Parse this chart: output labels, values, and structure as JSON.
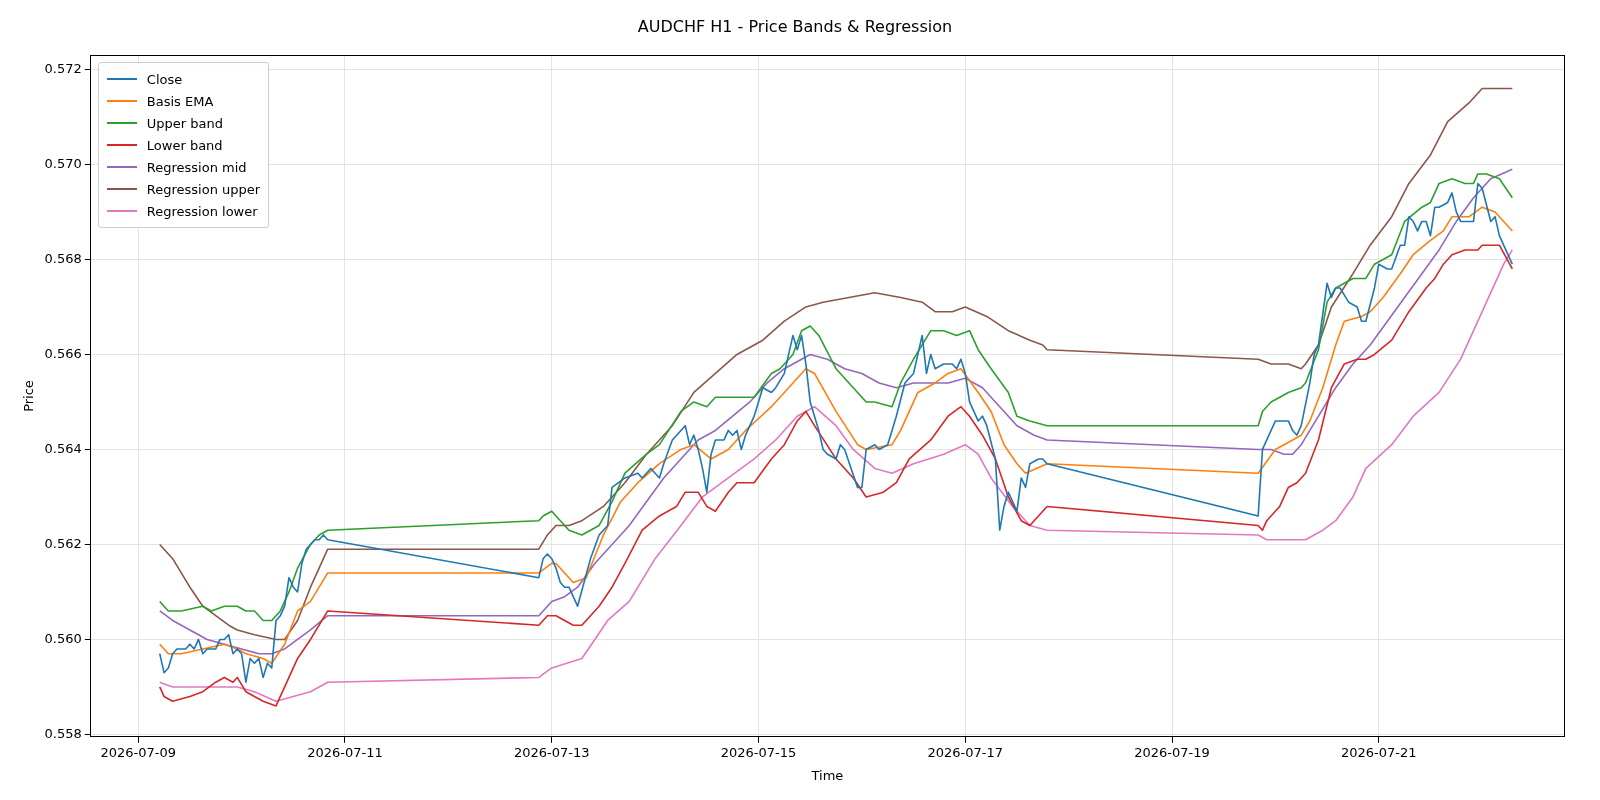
{
  "chart_data": {
    "type": "line",
    "title": "AUDCHF H1 - Price Bands & Regression",
    "xlabel": "Time",
    "ylabel": "Price",
    "xlim": [
      "2026-07-08T13:00",
      "2026-07-22T19:00"
    ],
    "xticks": [
      "2026-07-09",
      "2026-07-11",
      "2026-07-13",
      "2026-07-15",
      "2026-07-17",
      "2026-07-19",
      "2026-07-21"
    ],
    "ylim": [
      0.55795,
      0.5723
    ],
    "yticks": [
      0.558,
      {
        "value": 0.56,
        "label": "0.560"
      },
      0.562,
      0.564,
      0.566,
      0.568,
      {
        "value": 0.57,
        "label": "0.570"
      },
      0.572
    ],
    "grid": true,
    "legend": "top left",
    "line_style": "solid",
    "series": [
      {
        "name": "Close",
        "color": "#1f77b4",
        "x": [
          "2026-07-09T05:00",
          "2026-07-09T06:00",
          "2026-07-09T07:00",
          "2026-07-09T08:00",
          "2026-07-09T09:00",
          "2026-07-09T10:00",
          "2026-07-09T11:00",
          "2026-07-09T12:00",
          "2026-07-09T13:00",
          "2026-07-09T14:00",
          "2026-07-09T15:00",
          "2026-07-09T16:00",
          "2026-07-09T17:00",
          "2026-07-09T18:00",
          "2026-07-09T19:00",
          "2026-07-09T20:00",
          "2026-07-09T21:00",
          "2026-07-09T22:00",
          "2026-07-09T23:00",
          "2026-07-10T00:00",
          "2026-07-10T01:00",
          "2026-07-10T02:00",
          "2026-07-10T03:00",
          "2026-07-10T04:00",
          "2026-07-10T05:00",
          "2026-07-10T06:00",
          "2026-07-10T07:00",
          "2026-07-10T08:00",
          "2026-07-10T09:00",
          "2026-07-10T10:00",
          "2026-07-10T11:00",
          "2026-07-10T12:00",
          "2026-07-10T13:00",
          "2026-07-10T14:00",
          "2026-07-10T15:00",
          "2026-07-10T16:00",
          "2026-07-10T17:00",
          "2026-07-10T18:00",
          "2026-07-10T19:00",
          "2026-07-10T20:00",
          "2026-07-12T21:00",
          "2026-07-12T22:00",
          "2026-07-12T23:00",
          "2026-07-13T00:00",
          "2026-07-13T01:00",
          "2026-07-13T02:00",
          "2026-07-13T03:00",
          "2026-07-13T04:00",
          "2026-07-13T06:00",
          "2026-07-13T09:00",
          "2026-07-13T11:00",
          "2026-07-13T13:00",
          "2026-07-13T14:00",
          "2026-07-13T17:00",
          "2026-07-13T20:00",
          "2026-07-13T21:00",
          "2026-07-13T23:00",
          "2026-07-14T01:00",
          "2026-07-14T02:00",
          "2026-07-14T04:00",
          "2026-07-14T05:00",
          "2026-07-14T07:00",
          "2026-07-14T08:00",
          "2026-07-14T09:00",
          "2026-07-14T10:00",
          "2026-07-14T11:00",
          "2026-07-14T12:00",
          "2026-07-14T13:00",
          "2026-07-14T14:00",
          "2026-07-14T16:00",
          "2026-07-14T17:00",
          "2026-07-14T18:00",
          "2026-07-14T19:00",
          "2026-07-14T20:00",
          "2026-07-14T21:00",
          "2026-07-14T23:00",
          "2026-07-15T01:00",
          "2026-07-15T03:00",
          "2026-07-15T04:00",
          "2026-07-15T06:00",
          "2026-07-15T08:00",
          "2026-07-15T09:00",
          "2026-07-15T10:00",
          "2026-07-15T11:00",
          "2026-07-15T12:00",
          "2026-07-15T14:00",
          "2026-07-15T15:00",
          "2026-07-15T16:00",
          "2026-07-15T18:00",
          "2026-07-15T19:00",
          "2026-07-15T20:00",
          "2026-07-15T23:00",
          "2026-07-16T00:00",
          "2026-07-16T01:00",
          "2026-07-16T03:00",
          "2026-07-16T04:00",
          "2026-07-16T06:00",
          "2026-07-16T08:00",
          "2026-07-16T10:00",
          "2026-07-16T12:00",
          "2026-07-16T14:00",
          "2026-07-16T15:00",
          "2026-07-16T16:00",
          "2026-07-16T17:00",
          "2026-07-16T19:00",
          "2026-07-16T21:00",
          "2026-07-16T22:00",
          "2026-07-16T23:00",
          "2026-07-17T00:00",
          "2026-07-17T01:00",
          "2026-07-17T03:00",
          "2026-07-17T04:00",
          "2026-07-17T05:00",
          "2026-07-17T07:00",
          "2026-07-17T08:00",
          "2026-07-17T09:00",
          "2026-07-17T10:00",
          "2026-07-17T12:00",
          "2026-07-17T13:00",
          "2026-07-17T14:00",
          "2026-07-17T15:00",
          "2026-07-17T17:00",
          "2026-07-17T18:00",
          "2026-07-17T19:00",
          "2026-07-19T20:00",
          "2026-07-19T21:00",
          "2026-07-19T22:00",
          "2026-07-20T00:00",
          "2026-07-20T03:00",
          "2026-07-20T04:00",
          "2026-07-20T05:00",
          "2026-07-20T06:00",
          "2026-07-20T08:00",
          "2026-07-20T09:00",
          "2026-07-20T10:00",
          "2026-07-20T12:00",
          "2026-07-20T13:00",
          "2026-07-20T14:00",
          "2026-07-20T15:00",
          "2026-07-20T17:00",
          "2026-07-20T19:00",
          "2026-07-20T20:00",
          "2026-07-20T21:00",
          "2026-07-20T23:00",
          "2026-07-21T00:00",
          "2026-07-21T02:00",
          "2026-07-21T03:00",
          "2026-07-21T05:00",
          "2026-07-21T06:00",
          "2026-07-21T07:00",
          "2026-07-21T08:00",
          "2026-07-21T09:00",
          "2026-07-21T10:00",
          "2026-07-21T11:00",
          "2026-07-21T12:00",
          "2026-07-21T13:00",
          "2026-07-21T14:00",
          "2026-07-21T16:00",
          "2026-07-21T17:00",
          "2026-07-21T18:00",
          "2026-07-21T19:00",
          "2026-07-21T21:00",
          "2026-07-21T22:00",
          "2026-07-21T23:00",
          "2026-07-22T00:00",
          "2026-07-22T02:00",
          "2026-07-22T03:00",
          "2026-07-22T04:00",
          "2026-07-22T07:00"
        ],
        "values": [
          0.5597,
          0.5593,
          0.5594,
          0.5597,
          0.5598,
          0.5598,
          0.5598,
          0.5599,
          0.5598,
          0.56,
          0.5597,
          0.5598,
          0.5598,
          0.5598,
          0.56,
          0.56,
          0.5601,
          0.5597,
          0.5598,
          0.5597,
          0.5591,
          0.5596,
          0.5595,
          0.5596,
          0.5592,
          0.5595,
          0.5594,
          0.5604,
          0.5605,
          0.5607,
          0.5613,
          0.5611,
          0.561,
          0.5616,
          0.5619,
          0.562,
          0.5621,
          0.5621,
          0.5622,
          0.5621,
          0.5613,
          0.5617,
          0.5618,
          0.5617,
          0.5615,
          0.5612,
          0.5611,
          0.5611,
          0.5607,
          0.5617,
          0.5622,
          0.5624,
          0.5632,
          0.5634,
          0.5635,
          0.5634,
          0.5636,
          0.5634,
          0.5637,
          0.5642,
          0.5643,
          0.5645,
          0.5641,
          0.5643,
          0.564,
          0.5636,
          0.5631,
          0.5639,
          0.5642,
          0.5642,
          0.5644,
          0.5643,
          0.5644,
          0.564,
          0.5643,
          0.5647,
          0.5653,
          0.5652,
          0.5653,
          0.5656,
          0.5664,
          0.5661,
          0.5664,
          0.5658,
          0.565,
          0.5644,
          0.564,
          0.5639,
          0.5638,
          0.5641,
          0.564,
          0.5632,
          0.5632,
          0.564,
          0.5641,
          0.564,
          0.5641,
          0.5647,
          0.5654,
          0.5656,
          0.5664,
          0.5656,
          0.566,
          0.5657,
          0.5658,
          0.5658,
          0.5657,
          0.5659,
          0.5656,
          0.565,
          0.5646,
          0.5647,
          0.5645,
          0.5638,
          0.5623,
          0.5628,
          0.5631,
          0.5627,
          0.5634,
          0.5632,
          0.5637,
          0.5638,
          0.5638,
          0.5637,
          0.5626,
          0.564,
          0.5642,
          0.5646,
          0.5646,
          0.5644,
          0.5643,
          0.5645,
          0.5654,
          0.566,
          0.5662,
          0.5675,
          0.5672,
          0.5674,
          0.5674,
          0.5671,
          0.567,
          0.5667,
          0.5667,
          0.5674,
          0.5679,
          0.5678,
          0.5678,
          0.5683,
          0.5683,
          0.5689,
          0.5688,
          0.5686,
          0.5688,
          0.5688,
          0.5685,
          0.5691,
          0.5691,
          0.5692,
          0.5694,
          0.569,
          0.5688,
          0.5688,
          0.5688,
          0.5696,
          0.5695,
          0.5688,
          0.5689,
          0.5685,
          0.5679
        ]
      },
      {
        "name": "Basis EMA",
        "color": "#ff7f0e",
        "x": [
          "2026-07-09T05:00",
          "2026-07-09T07:00",
          "2026-07-09T10:00",
          "2026-07-09T15:00",
          "2026-07-09T20:00",
          "2026-07-09T23:00",
          "2026-07-10T01:00",
          "2026-07-10T05:00",
          "2026-07-10T07:00",
          "2026-07-10T10:00",
          "2026-07-10T13:00",
          "2026-07-10T16:00",
          "2026-07-10T20:00",
          "2026-07-12T21:00",
          "2026-07-13T00:00",
          "2026-07-13T01:00",
          "2026-07-13T05:00",
          "2026-07-13T08:00",
          "2026-07-13T12:00",
          "2026-07-13T16:00",
          "2026-07-13T20:00",
          "2026-07-14T01:00",
          "2026-07-14T06:00",
          "2026-07-14T09:00",
          "2026-07-14T13:00",
          "2026-07-14T17:00",
          "2026-07-14T21:00",
          "2026-07-15T03:00",
          "2026-07-15T08:00",
          "2026-07-15T11:00",
          "2026-07-15T13:00",
          "2026-07-15T18:00",
          "2026-07-15T23:00",
          "2026-07-16T01:00",
          "2026-07-16T07:00",
          "2026-07-16T09:00",
          "2026-07-16T13:00",
          "2026-07-16T17:00",
          "2026-07-16T20:00",
          "2026-07-16T23:00",
          "2026-07-17T03:00",
          "2026-07-17T06:00",
          "2026-07-17T09:00",
          "2026-07-17T12:00",
          "2026-07-17T14:00",
          "2026-07-17T19:00",
          "2026-07-19T20:00",
          "2026-07-20T00:00",
          "2026-07-20T04:00",
          "2026-07-20T06:00",
          "2026-07-20T08:00",
          "2026-07-20T11:00",
          "2026-07-20T14:00",
          "2026-07-20T16:00",
          "2026-07-20T20:00",
          "2026-07-20T22:00",
          "2026-07-21T01:00",
          "2026-07-21T05:00",
          "2026-07-21T08:00",
          "2026-07-21T12:00",
          "2026-07-21T15:00",
          "2026-07-21T17:00",
          "2026-07-21T21:00",
          "2026-07-22T00:00",
          "2026-07-22T03:00",
          "2026-07-22T07:00"
        ],
        "values": [
          0.5599,
          0.5597,
          0.5597,
          0.5598,
          0.5599,
          0.5598,
          0.5597,
          0.5596,
          0.5595,
          0.5599,
          0.5606,
          0.5608,
          0.5614,
          0.5614,
          0.5616,
          0.5616,
          0.5612,
          0.5613,
          0.5622,
          0.5629,
          0.5633,
          0.5637,
          0.564,
          0.5641,
          0.5638,
          0.564,
          0.5644,
          0.5649,
          0.5654,
          0.5657,
          0.5656,
          0.5648,
          0.5641,
          0.564,
          0.5641,
          0.5644,
          0.5652,
          0.5654,
          0.5656,
          0.5657,
          0.5652,
          0.5648,
          0.5641,
          0.5637,
          0.5635,
          0.5637,
          0.5635,
          0.564,
          0.5642,
          0.5643,
          0.5646,
          0.5653,
          0.5662,
          0.5667,
          0.5668,
          0.5669,
          0.5672,
          0.5677,
          0.5681,
          0.5684,
          0.5686,
          0.5689,
          0.5689,
          0.5691,
          0.569,
          0.5686
        ]
      },
      {
        "name": "Upper band",
        "color": "#2ca02c",
        "x": [
          "2026-07-09T05:00",
          "2026-07-09T07:00",
          "2026-07-09T10:00",
          "2026-07-09T15:00",
          "2026-07-09T17:00",
          "2026-07-09T20:00",
          "2026-07-09T23:00",
          "2026-07-10T01:00",
          "2026-07-10T03:00",
          "2026-07-10T05:00",
          "2026-07-10T07:00",
          "2026-07-10T09:00",
          "2026-07-10T11:00",
          "2026-07-10T13:00",
          "2026-07-10T16:00",
          "2026-07-10T18:00",
          "2026-07-10T20:00",
          "2026-07-12T21:00",
          "2026-07-12T22:00",
          "2026-07-13T00:00",
          "2026-07-13T01:00",
          "2026-07-13T04:00",
          "2026-07-13T07:00",
          "2026-07-13T11:00",
          "2026-07-13T14:00",
          "2026-07-13T17:00",
          "2026-07-13T22:00",
          "2026-07-14T01:00",
          "2026-07-14T06:00",
          "2026-07-14T09:00",
          "2026-07-14T12:00",
          "2026-07-14T14:00",
          "2026-07-14T17:00",
          "2026-07-14T21:00",
          "2026-07-14T23:00",
          "2026-07-15T03:00",
          "2026-07-15T05:00",
          "2026-07-15T08:00",
          "2026-07-15T10:00",
          "2026-07-15T12:00",
          "2026-07-15T14:00",
          "2026-07-15T18:00",
          "2026-07-16T00:00",
          "2026-07-16T01:00",
          "2026-07-16T03:00",
          "2026-07-16T07:00",
          "2026-07-16T09:00",
          "2026-07-16T12:00",
          "2026-07-16T16:00",
          "2026-07-16T19:00",
          "2026-07-16T22:00",
          "2026-07-17T01:00",
          "2026-07-17T03:00",
          "2026-07-17T06:00",
          "2026-07-17T10:00",
          "2026-07-17T12:00",
          "2026-07-17T15:00",
          "2026-07-17T19:00",
          "2026-07-19T20:00",
          "2026-07-19T21:00",
          "2026-07-19T23:00",
          "2026-07-20T03:00",
          "2026-07-20T06:00",
          "2026-07-20T07:00",
          "2026-07-20T10:00",
          "2026-07-20T12:00",
          "2026-07-20T14:00",
          "2026-07-20T18:00",
          "2026-07-20T21:00",
          "2026-07-20T23:00",
          "2026-07-21T03:00",
          "2026-07-21T06:00",
          "2026-07-21T10:00",
          "2026-07-21T12:00",
          "2026-07-21T14:00",
          "2026-07-21T17:00",
          "2026-07-21T20:00",
          "2026-07-21T22:00",
          "2026-07-21T23:00",
          "2026-07-22T01:00",
          "2026-07-22T04:00",
          "2026-07-22T07:00"
        ],
        "values": [
          0.5608,
          0.5606,
          0.5606,
          0.5607,
          0.5606,
          0.5607,
          0.5607,
          0.5606,
          0.5606,
          0.5604,
          0.5604,
          0.5606,
          0.561,
          0.5615,
          0.562,
          0.5622,
          0.5623,
          0.5625,
          0.5626,
          0.5627,
          0.5626,
          0.5623,
          0.5622,
          0.5624,
          0.5629,
          0.5635,
          0.5639,
          0.5641,
          0.5648,
          0.565,
          0.5649,
          0.5651,
          0.5651,
          0.5651,
          0.5651,
          0.5656,
          0.5657,
          0.566,
          0.5665,
          0.5666,
          0.5664,
          0.5657,
          0.5651,
          0.565,
          0.565,
          0.5649,
          0.5654,
          0.5659,
          0.5665,
          0.5665,
          0.5664,
          0.5665,
          0.5661,
          0.5657,
          0.5652,
          0.5647,
          0.5646,
          0.5645,
          0.5645,
          0.5648,
          0.565,
          0.5652,
          0.5653,
          0.5654,
          0.5661,
          0.5671,
          0.5674,
          0.5676,
          0.5676,
          0.5679,
          0.5681,
          0.5688,
          0.5691,
          0.5692,
          0.5696,
          0.5697,
          0.5696,
          0.5696,
          0.5698,
          0.5698,
          0.5697,
          0.5693
        ]
      },
      {
        "name": "Lower band",
        "color": "#d62728",
        "x": [
          "2026-07-09T05:00",
          "2026-07-09T06:00",
          "2026-07-09T08:00",
          "2026-07-09T12:00",
          "2026-07-09T15:00",
          "2026-07-09T18:00",
          "2026-07-09T20:00",
          "2026-07-09T22:00",
          "2026-07-09T23:00",
          "2026-07-10T01:00",
          "2026-07-10T03:00",
          "2026-07-10T05:00",
          "2026-07-10T08:00",
          "2026-07-10T09:00",
          "2026-07-10T11:00",
          "2026-07-10T13:00",
          "2026-07-10T16:00",
          "2026-07-10T20:00",
          "2026-07-12T21:00",
          "2026-07-12T23:00",
          "2026-07-13T01:00",
          "2026-07-13T03:00",
          "2026-07-13T05:00",
          "2026-07-13T07:00",
          "2026-07-13T11:00",
          "2026-07-13T14:00",
          "2026-07-13T17:00",
          "2026-07-13T21:00",
          "2026-07-14T01:00",
          "2026-07-14T05:00",
          "2026-07-14T07:00",
          "2026-07-14T10:00",
          "2026-07-14T12:00",
          "2026-07-14T14:00",
          "2026-07-14T17:00",
          "2026-07-14T19:00",
          "2026-07-14T23:00",
          "2026-07-15T03:00",
          "2026-07-15T06:00",
          "2026-07-15T09:00",
          "2026-07-15T11:00",
          "2026-07-15T13:00",
          "2026-07-15T18:00",
          "2026-07-15T22:00",
          "2026-07-16T01:00",
          "2026-07-16T05:00",
          "2026-07-16T08:00",
          "2026-07-16T11:00",
          "2026-07-16T16:00",
          "2026-07-16T20:00",
          "2026-07-16T23:00",
          "2026-07-17T01:00",
          "2026-07-17T04:00",
          "2026-07-17T07:00",
          "2026-07-17T10:00",
          "2026-07-17T13:00",
          "2026-07-17T15:00",
          "2026-07-17T17:00",
          "2026-07-17T19:00",
          "2026-07-19T20:00",
          "2026-07-19T21:00",
          "2026-07-19T22:00",
          "2026-07-20T01:00",
          "2026-07-20T03:00",
          "2026-07-20T05:00",
          "2026-07-20T07:00",
          "2026-07-20T10:00",
          "2026-07-20T13:00",
          "2026-07-20T16:00",
          "2026-07-20T19:00",
          "2026-07-20T21:00",
          "2026-07-20T23:00",
          "2026-07-21T03:00",
          "2026-07-21T07:00",
          "2026-07-21T11:00",
          "2026-07-21T13:00",
          "2026-07-21T15:00",
          "2026-07-21T17:00",
          "2026-07-21T20:00",
          "2026-07-21T23:00",
          "2026-07-22T00:00",
          "2026-07-22T02:00",
          "2026-07-22T04:00",
          "2026-07-22T07:00"
        ],
        "values": [
          0.559,
          0.5588,
          0.5587,
          0.5588,
          0.5589,
          0.5591,
          0.5592,
          0.5591,
          0.5592,
          0.5589,
          0.5588,
          0.5587,
          0.5586,
          0.5588,
          0.5592,
          0.5596,
          0.56,
          0.5606,
          0.5603,
          0.5605,
          0.5605,
          0.5604,
          0.5603,
          0.5603,
          0.5607,
          0.5611,
          0.5616,
          0.5623,
          0.5626,
          0.5628,
          0.5631,
          0.5631,
          0.5628,
          0.5627,
          0.5631,
          0.5633,
          0.5633,
          0.5638,
          0.5641,
          0.5646,
          0.5648,
          0.5645,
          0.5638,
          0.5634,
          0.563,
          0.5631,
          0.5633,
          0.5638,
          0.5642,
          0.5647,
          0.5649,
          0.5647,
          0.5643,
          0.5638,
          0.563,
          0.5625,
          0.5624,
          0.5626,
          0.5628,
          0.5624,
          0.5623,
          0.5625,
          0.5628,
          0.5632,
          0.5633,
          0.5635,
          0.5642,
          0.5653,
          0.5658,
          0.5659,
          0.5659,
          0.566,
          0.5663,
          0.5669,
          0.5674,
          0.5676,
          0.5679,
          0.5681,
          0.5682,
          0.5682,
          0.5683,
          0.5683,
          0.5683,
          0.5678
        ]
      },
      {
        "name": "Regression mid",
        "color": "#9467bd",
        "x": [
          "2026-07-09T05:00",
          "2026-07-09T08:00",
          "2026-07-09T12:00",
          "2026-07-09T16:00",
          "2026-07-09T20:00",
          "2026-07-10T00:00",
          "2026-07-10T04:00",
          "2026-07-10T07:00",
          "2026-07-10T10:00",
          "2026-07-10T13:00",
          "2026-07-10T16:00",
          "2026-07-10T20:00",
          "2026-07-12T21:00",
          "2026-07-13T00:00",
          "2026-07-13T03:00",
          "2026-07-13T06:00",
          "2026-07-13T10:00",
          "2026-07-13T14:00",
          "2026-07-13T18:00",
          "2026-07-13T22:00",
          "2026-07-14T02:00",
          "2026-07-14T06:00",
          "2026-07-14T10:00",
          "2026-07-14T14:00",
          "2026-07-14T18:00",
          "2026-07-14T22:00",
          "2026-07-15T02:00",
          "2026-07-15T06:00",
          "2026-07-15T10:00",
          "2026-07-15T12:00",
          "2026-07-15T16:00",
          "2026-07-15T20:00",
          "2026-07-16T00:00",
          "2026-07-16T04:00",
          "2026-07-16T08:00",
          "2026-07-16T12:00",
          "2026-07-16T16:00",
          "2026-07-16T20:00",
          "2026-07-17T00:00",
          "2026-07-17T04:00",
          "2026-07-17T08:00",
          "2026-07-17T12:00",
          "2026-07-17T16:00",
          "2026-07-17T19:00",
          "2026-07-19T20:00",
          "2026-07-19T23:00",
          "2026-07-20T02:00",
          "2026-07-20T04:00",
          "2026-07-20T06:00",
          "2026-07-20T10:00",
          "2026-07-20T14:00",
          "2026-07-20T18:00",
          "2026-07-20T22:00",
          "2026-07-21T02:00",
          "2026-07-21T06:00",
          "2026-07-21T10:00",
          "2026-07-21T14:00",
          "2026-07-21T18:00",
          "2026-07-21T22:00",
          "2026-07-22T02:00",
          "2026-07-22T07:00"
        ],
        "values": [
          0.5606,
          0.5604,
          0.5602,
          0.56,
          0.5599,
          0.5598,
          0.5597,
          0.5597,
          0.5598,
          0.56,
          0.5602,
          0.5605,
          0.5605,
          0.5608,
          0.5609,
          0.5611,
          0.5616,
          0.562,
          0.5624,
          0.5629,
          0.5634,
          0.5638,
          0.5642,
          0.5644,
          0.5647,
          0.565,
          0.5654,
          0.5657,
          0.5659,
          0.566,
          0.5659,
          0.5657,
          0.5656,
          0.5654,
          0.5653,
          0.5654,
          0.5654,
          0.5654,
          0.5655,
          0.5653,
          0.5649,
          0.5645,
          0.5643,
          0.5642,
          0.564,
          0.564,
          0.5639,
          0.5639,
          0.5641,
          0.5647,
          0.5653,
          0.5658,
          0.5662,
          0.5667,
          0.5672,
          0.5677,
          0.5682,
          0.5688,
          0.5693,
          0.5697,
          0.5699
        ]
      },
      {
        "name": "Regression upper",
        "color": "#8c564b",
        "x": [
          "2026-07-09T05:00",
          "2026-07-09T08:00",
          "2026-07-09T12:00",
          "2026-07-09T15:00",
          "2026-07-09T18:00",
          "2026-07-09T21:00",
          "2026-07-09T23:00",
          "2026-07-10T03:00",
          "2026-07-10T08:00",
          "2026-07-10T10:00",
          "2026-07-10T13:00",
          "2026-07-10T16:00",
          "2026-07-10T20:00",
          "2026-07-12T21:00",
          "2026-07-12T23:00",
          "2026-07-13T01:00",
          "2026-07-13T04:00",
          "2026-07-13T07:00",
          "2026-07-13T12:00",
          "2026-07-13T17:00",
          "2026-07-13T22:00",
          "2026-07-14T04:00",
          "2026-07-14T09:00",
          "2026-07-14T14:00",
          "2026-07-14T19:00",
          "2026-07-15T01:00",
          "2026-07-15T06:00",
          "2026-07-15T11:00",
          "2026-07-15T15:00",
          "2026-07-15T21:00",
          "2026-07-16T03:00",
          "2026-07-16T09:00",
          "2026-07-16T14:00",
          "2026-07-16T17:00",
          "2026-07-16T21:00",
          "2026-07-17T00:00",
          "2026-07-17T05:00",
          "2026-07-17T10:00",
          "2026-07-17T15:00",
          "2026-07-17T18:00",
          "2026-07-17T19:00",
          "2026-07-19T20:00",
          "2026-07-19T23:00",
          "2026-07-20T03:00",
          "2026-07-20T06:00",
          "2026-07-20T07:00",
          "2026-07-20T10:00",
          "2026-07-20T13:00",
          "2026-07-20T18:00",
          "2026-07-20T22:00",
          "2026-07-21T03:00",
          "2026-07-21T07:00",
          "2026-07-21T12:00",
          "2026-07-21T16:00",
          "2026-07-21T21:00",
          "2026-07-22T00:00",
          "2026-07-22T04:00",
          "2026-07-22T07:00"
        ],
        "values": [
          0.562,
          0.5617,
          0.5611,
          0.5607,
          0.5605,
          0.5603,
          0.5602,
          0.5601,
          0.56,
          0.56,
          0.5604,
          0.5611,
          0.5619,
          0.5619,
          0.5622,
          0.5624,
          0.5624,
          0.5625,
          0.5628,
          0.5633,
          0.5639,
          0.5645,
          0.5652,
          0.5656,
          0.566,
          0.5663,
          0.5667,
          0.567,
          0.5671,
          0.5672,
          0.5673,
          0.5672,
          0.5671,
          0.5669,
          0.5669,
          0.567,
          0.5668,
          0.5665,
          0.5663,
          0.5662,
          0.5661,
          0.5659,
          0.5658,
          0.5658,
          0.5657,
          0.5658,
          0.5662,
          0.567,
          0.5677,
          0.5683,
          0.5689,
          0.5696,
          0.5702,
          0.5709,
          0.5713,
          0.5716,
          0.5716,
          0.5716
        ]
      },
      {
        "name": "Regression lower",
        "color": "#e377c2",
        "x": [
          "2026-07-09T05:00",
          "2026-07-09T08:00",
          "2026-07-09T12:00",
          "2026-07-09T16:00",
          "2026-07-09T20:00",
          "2026-07-09T23:00",
          "2026-07-10T03:00",
          "2026-07-10T08:00",
          "2026-07-10T12:00",
          "2026-07-10T16:00",
          "2026-07-10T20:00",
          "2026-07-12T21:00",
          "2026-07-13T00:00",
          "2026-07-13T07:00",
          "2026-07-13T13:00",
          "2026-07-13T18:00",
          "2026-07-14T00:00",
          "2026-07-14T06:00",
          "2026-07-14T11:00",
          "2026-07-14T17:00",
          "2026-07-14T23:00",
          "2026-07-15T04:00",
          "2026-07-15T09:00",
          "2026-07-15T13:00",
          "2026-07-15T18:00",
          "2026-07-15T22:00",
          "2026-07-16T03:00",
          "2026-07-16T07:00",
          "2026-07-16T12:00",
          "2026-07-16T19:00",
          "2026-07-17T00:00",
          "2026-07-17T03:00",
          "2026-07-17T06:00",
          "2026-07-17T11:00",
          "2026-07-17T15:00",
          "2026-07-17T19:00",
          "2026-07-19T20:00",
          "2026-07-19T22:00",
          "2026-07-20T04:00",
          "2026-07-20T07:00",
          "2026-07-20T11:00",
          "2026-07-20T14:00",
          "2026-07-20T18:00",
          "2026-07-20T21:00",
          "2026-07-21T03:00",
          "2026-07-21T08:00",
          "2026-07-21T14:00",
          "2026-07-21T19:00",
          "2026-07-21T22:00",
          "2026-07-22T02:00",
          "2026-07-22T05:00",
          "2026-07-22T07:00"
        ],
        "values": [
          0.5591,
          0.559,
          0.559,
          0.559,
          0.559,
          0.559,
          0.5589,
          0.5587,
          0.5588,
          0.5589,
          0.5591,
          0.5592,
          0.5594,
          0.5596,
          0.5604,
          0.5608,
          0.5617,
          0.5624,
          0.563,
          0.5634,
          0.5638,
          0.5642,
          0.5647,
          0.5649,
          0.5645,
          0.564,
          0.5636,
          0.5635,
          0.5637,
          0.5639,
          0.5641,
          0.5639,
          0.5634,
          0.5628,
          0.5624,
          0.5623,
          0.5622,
          0.5621,
          0.5621,
          0.5621,
          0.5623,
          0.5625,
          0.563,
          0.5636,
          0.5641,
          0.5647,
          0.5652,
          0.5659,
          0.5665,
          0.5673,
          0.5679,
          0.5682
        ]
      }
    ]
  }
}
